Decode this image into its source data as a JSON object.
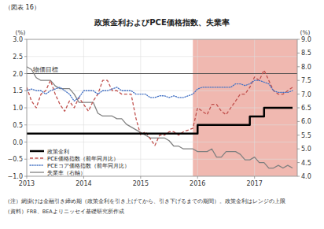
{
  "chart_data": {
    "type": "line",
    "figure_label": "（図表 16）",
    "title": "政策金利およびPCE価格指数、失業率",
    "ylabel": "(%)",
    "y2label": "(%)",
    "xlim": [
      2013.0,
      2017.75
    ],
    "xticks": [
      2013,
      2014,
      2015,
      2016,
      2017
    ],
    "ylim": [
      -1.0,
      3.0
    ],
    "yticks": [
      {
        "value": -1.0,
        "label": "−1.0"
      },
      {
        "value": -0.5,
        "label": "−0.5"
      },
      {
        "value": 0.0,
        "label": "0.0"
      },
      0.5,
      {
        "value": 1.0,
        "label": "1.0"
      },
      1.5,
      {
        "value": 2.0,
        "label": "2.0"
      },
      2.5,
      {
        "value": 3.0,
        "label": "3.0"
      }
    ],
    "y2lim": [
      4.0,
      9.0
    ],
    "y2ticks": [
      {
        "value": 4.0,
        "label": "4.0"
      },
      4.5,
      {
        "value": 5.0,
        "label": "5.0"
      },
      5.5,
      {
        "value": 6.0,
        "label": "6.0"
      },
      6.5,
      {
        "value": 7.0,
        "label": "7.0"
      },
      7.5,
      {
        "value": 8.0,
        "label": "8.0"
      },
      8.5,
      {
        "value": 9.0,
        "label": "9.0"
      }
    ],
    "grid": true,
    "legend": "lower left",
    "shaded_regions": [
      {
        "x": [
          2015.917,
          2017.75
        ],
        "color": "#f0b8b0"
      }
    ],
    "reference_lines": [
      {
        "value": 2.0,
        "label": "物価目標"
      }
    ],
    "notes": [
      "（注）網掛けは金融引き締め期（政策金利を引き上げてから、引き下げるまでの期間）。政策金利はレンジの上限",
      "（資料）FRB、BEAよりニッセイ基礎研究所作成"
    ],
    "x": [
      2013.0,
      2013.083,
      2013.167,
      2013.25,
      2013.333,
      2013.417,
      2013.5,
      2013.583,
      2013.667,
      2013.75,
      2013.833,
      2013.917,
      2014.0,
      2014.083,
      2014.167,
      2014.25,
      2014.333,
      2014.417,
      2014.5,
      2014.583,
      2014.667,
      2014.75,
      2014.833,
      2014.917,
      2015.0,
      2015.083,
      2015.167,
      2015.25,
      2015.333,
      2015.417,
      2015.5,
      2015.583,
      2015.667,
      2015.75,
      2015.833,
      2015.917,
      2016.0,
      2016.083,
      2016.167,
      2016.25,
      2016.333,
      2016.417,
      2016.5,
      2016.583,
      2016.667,
      2016.75,
      2016.833,
      2016.917,
      2017.0,
      2017.083,
      2017.167,
      2017.25,
      2017.333,
      2017.417,
      2017.5,
      2017.583,
      2017.667
    ],
    "series": [
      {
        "name": "政策金利",
        "type": "step",
        "color": "#000000",
        "line_style": "solid",
        "values": [
          0.25,
          0.25,
          0.25,
          0.25,
          0.25,
          0.25,
          0.25,
          0.25,
          0.25,
          0.25,
          0.25,
          0.25,
          0.25,
          0.25,
          0.25,
          0.25,
          0.25,
          0.25,
          0.25,
          0.25,
          0.25,
          0.25,
          0.25,
          0.25,
          0.25,
          0.25,
          0.25,
          0.25,
          0.25,
          0.25,
          0.25,
          0.25,
          0.25,
          0.25,
          0.25,
          0.25,
          0.5,
          0.5,
          0.5,
          0.5,
          0.5,
          0.5,
          0.5,
          0.5,
          0.5,
          0.5,
          0.5,
          0.75,
          0.75,
          0.75,
          1.0,
          1.0,
          1.0,
          1.0,
          1.0,
          1.0,
          1.0
        ]
      },
      {
        "name": "PCE価格指数（前年同月比）",
        "type": "line",
        "color": "#c0504d",
        "line_style": "dashed",
        "values": [
          1.6,
          1.2,
          1.0,
          1.4,
          1.5,
          1.8,
          1.4,
          1.1,
          0.9,
          1.2,
          1.0,
          1.3,
          1.1,
          0.9,
          1.2,
          1.4,
          1.8,
          1.8,
          1.5,
          1.5,
          1.4,
          1.4,
          1.4,
          0.7,
          0.2,
          0.3,
          0.1,
          -0.1,
          0.2,
          0.2,
          0.3,
          0.3,
          0.2,
          0.3,
          0.35,
          0.4,
          1.0,
          0.9,
          0.8,
          1.1,
          1.1,
          0.9,
          0.8,
          1.0,
          1.2,
          1.4,
          1.4,
          1.6,
          1.9,
          1.8,
          2.1,
          1.8,
          1.5,
          1.4,
          1.4,
          1.5,
          1.6
        ]
      },
      {
        "name": "PCEコア価格指数（前年同月比）",
        "type": "line",
        "color": "#4472c4",
        "line_style": "dotted",
        "values": [
          1.5,
          1.55,
          1.5,
          1.5,
          1.4,
          1.5,
          1.55,
          1.6,
          1.5,
          1.4,
          1.2,
          1.3,
          1.5,
          1.5,
          1.5,
          1.4,
          1.5,
          1.5,
          1.55,
          1.6,
          1.5,
          1.5,
          1.5,
          1.4,
          1.4,
          1.4,
          1.3,
          1.3,
          1.35,
          1.35,
          1.3,
          1.35,
          1.3,
          1.3,
          1.35,
          1.4,
          1.55,
          1.6,
          1.6,
          1.6,
          1.6,
          1.6,
          1.6,
          1.6,
          1.7,
          1.7,
          1.65,
          1.7,
          1.8,
          1.8,
          1.75,
          1.7,
          1.5,
          1.45,
          1.45,
          1.45,
          1.5
        ]
      },
      {
        "name": "失業率（右軸）",
        "type": "line",
        "color": "#808080",
        "line_style": "solid",
        "axis": "y2",
        "values": [
          8.0,
          7.9,
          7.6,
          7.5,
          7.5,
          7.5,
          7.3,
          7.2,
          7.2,
          7.2,
          7.0,
          6.7,
          6.7,
          6.7,
          6.7,
          6.3,
          6.2,
          6.2,
          6.2,
          6.1,
          6.1,
          5.9,
          5.8,
          5.7,
          5.6,
          5.5,
          5.4,
          5.4,
          5.4,
          5.4,
          5.3,
          5.1,
          5.1,
          5.0,
          5.0,
          5.0,
          4.9,
          4.9,
          4.9,
          5.0,
          4.7,
          4.7,
          4.9,
          4.9,
          4.9,
          4.8,
          4.6,
          4.6,
          4.7,
          4.5,
          4.5,
          4.3,
          4.3,
          4.4,
          4.3,
          4.4,
          4.3
        ]
      }
    ]
  }
}
